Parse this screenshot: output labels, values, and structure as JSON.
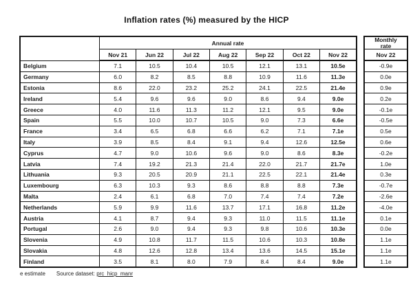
{
  "chart_data": {
    "type": "table",
    "title": "Inflation rates (%) measured by the HICP",
    "column_group": "Annual rate",
    "columns": [
      "Nov 21",
      "Jun 22",
      "Jul 22",
      "Aug 22",
      "Sep 22",
      "Oct 22",
      "Nov 22"
    ],
    "monthly_group_lines": [
      "Monthly",
      "rate"
    ],
    "monthly_column": "Nov 22",
    "rows": [
      {
        "country": "Belgium",
        "annual": [
          "7.1",
          "10.5",
          "10.4",
          "10.5",
          "12.1",
          "13.1",
          "10.5e"
        ],
        "monthly": "-0.9e"
      },
      {
        "country": "Germany",
        "annual": [
          "6.0",
          "8.2",
          "8.5",
          "8.8",
          "10.9",
          "11.6",
          "11.3e"
        ],
        "monthly": "0.0e"
      },
      {
        "country": "Estonia",
        "annual": [
          "8.6",
          "22.0",
          "23.2",
          "25.2",
          "24.1",
          "22.5",
          "21.4e"
        ],
        "monthly": "0.9e"
      },
      {
        "country": "Ireland",
        "annual": [
          "5.4",
          "9.6",
          "9.6",
          "9.0",
          "8.6",
          "9.4",
          "9.0e"
        ],
        "monthly": "0.2e"
      },
      {
        "country": "Greece",
        "annual": [
          "4.0",
          "11.6",
          "11.3",
          "11.2",
          "12.1",
          "9.5",
          "9.0e"
        ],
        "monthly": "-0.1e"
      },
      {
        "country": "Spain",
        "annual": [
          "5.5",
          "10.0",
          "10.7",
          "10.5",
          "9.0",
          "7.3",
          "6.6e"
        ],
        "monthly": "-0.5e"
      },
      {
        "country": "France",
        "annual": [
          "3.4",
          "6.5",
          "6.8",
          "6.6",
          "6.2",
          "7.1",
          "7.1e"
        ],
        "monthly": "0.5e"
      },
      {
        "country": "Italy",
        "annual": [
          "3.9",
          "8.5",
          "8.4",
          "9.1",
          "9.4",
          "12.6",
          "12.5e"
        ],
        "monthly": "0.6e"
      },
      {
        "country": "Cyprus",
        "annual": [
          "4.7",
          "9.0",
          "10.6",
          "9.6",
          "9.0",
          "8.6",
          "8.3e"
        ],
        "monthly": "-0.2e"
      },
      {
        "country": "Latvia",
        "annual": [
          "7.4",
          "19.2",
          "21.3",
          "21.4",
          "22.0",
          "21.7",
          "21.7e"
        ],
        "monthly": "1.0e"
      },
      {
        "country": "Lithuania",
        "annual": [
          "9.3",
          "20.5",
          "20.9",
          "21.1",
          "22.5",
          "22.1",
          "21.4e"
        ],
        "monthly": "0.3e"
      },
      {
        "country": "Luxembourg",
        "annual": [
          "6.3",
          "10.3",
          "9.3",
          "8.6",
          "8.8",
          "8.8",
          "7.3e"
        ],
        "monthly": "-0.7e"
      },
      {
        "country": "Malta",
        "annual": [
          "2.4",
          "6.1",
          "6.8",
          "7.0",
          "7.4",
          "7.4",
          "7.2e"
        ],
        "monthly": "-2.6e"
      },
      {
        "country": "Netherlands",
        "annual": [
          "5.9",
          "9.9",
          "11.6",
          "13.7",
          "17.1",
          "16.8",
          "11.2e"
        ],
        "monthly": "-4.0e"
      },
      {
        "country": "Austria",
        "annual": [
          "4.1",
          "8.7",
          "9.4",
          "9.3",
          "11.0",
          "11.5",
          "11.1e"
        ],
        "monthly": "0.1e"
      },
      {
        "country": "Portugal",
        "annual": [
          "2.6",
          "9.0",
          "9.4",
          "9.3",
          "9.8",
          "10.6",
          "10.3e"
        ],
        "monthly": "0.0e"
      },
      {
        "country": "Slovenia",
        "annual": [
          "4.9",
          "10.8",
          "11.7",
          "11.5",
          "10.6",
          "10.3",
          "10.8e"
        ],
        "monthly": "1.1e"
      },
      {
        "country": "Slovakia",
        "annual": [
          "4.8",
          "12.6",
          "12.8",
          "13.4",
          "13.6",
          "14.5",
          "15.1e"
        ],
        "monthly": "1.1e"
      },
      {
        "country": "Finland",
        "annual": [
          "3.5",
          "8.1",
          "8.0",
          "7.9",
          "8.4",
          "8.4",
          "9.0e"
        ],
        "monthly": "1.1e"
      }
    ],
    "note": "e estimate",
    "source_label": "Source dataset:",
    "source_link": "prc_hicp_manr"
  }
}
